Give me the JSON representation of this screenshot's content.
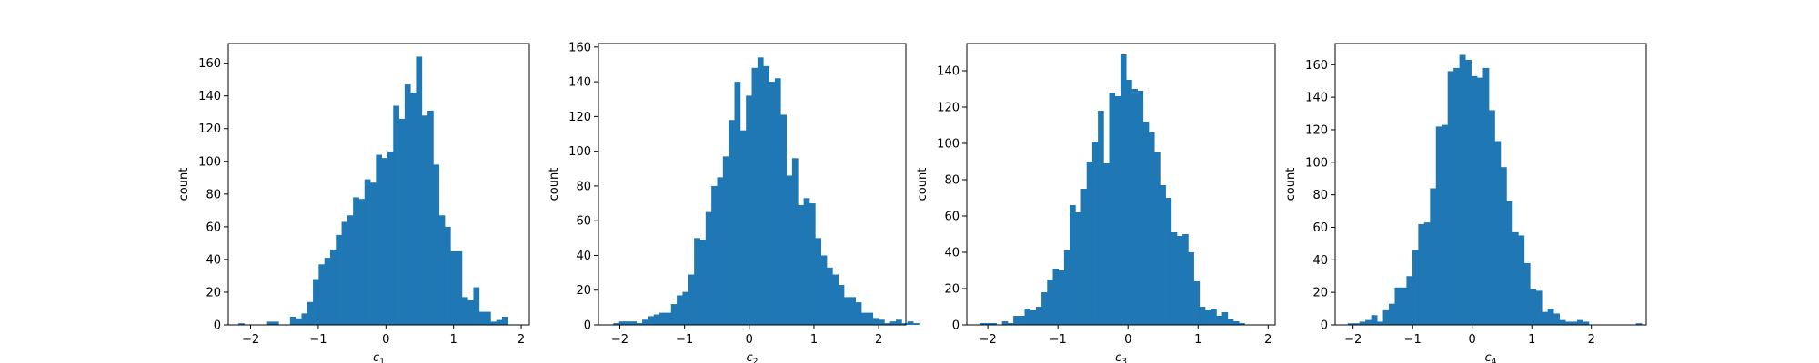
{
  "chart_data": [
    {
      "type": "histogram",
      "xlabel_main": "c",
      "xlabel_sub": "1",
      "ylabel": "count",
      "xlim": [
        -2.33,
        2.12
      ],
      "ylim": [
        0,
        172
      ],
      "xticks": [
        -2,
        -1,
        0,
        1,
        2
      ],
      "yticks": [
        0,
        20,
        40,
        60,
        80,
        100,
        120,
        140,
        160
      ],
      "bin_start": -2.18,
      "bin_width": 0.0847,
      "counts": [
        1,
        0,
        0,
        0,
        0,
        2,
        2,
        0,
        0,
        5,
        4,
        7,
        14,
        28,
        37,
        41,
        46,
        55,
        63,
        67,
        78,
        77,
        89,
        87,
        104,
        102,
        106,
        134,
        126,
        147,
        142,
        164,
        128,
        131,
        98,
        67,
        60,
        45,
        45,
        17,
        15,
        23,
        8,
        8,
        2,
        3,
        5,
        0
      ]
    },
    {
      "type": "histogram",
      "xlabel_main": "c",
      "xlabel_sub": "2",
      "ylabel": "count",
      "xlim": [
        -2.33,
        2.42
      ],
      "ylim": [
        0,
        162
      ],
      "xticks": [
        -2,
        -1,
        0,
        1,
        2
      ],
      "yticks": [
        0,
        20,
        40,
        60,
        80,
        100,
        120,
        140,
        160
      ],
      "bin_start": -2.1,
      "bin_width": 0.0891,
      "counts": [
        1,
        2,
        2,
        2,
        1,
        3,
        5,
        6,
        7,
        7,
        12,
        17,
        19,
        29,
        50,
        49,
        65,
        80,
        85,
        97,
        118,
        140,
        112,
        132,
        148,
        154,
        149,
        140,
        142,
        121,
        86,
        96,
        69,
        73,
        70,
        50,
        40,
        33,
        29,
        23,
        16,
        16,
        13,
        7,
        7,
        4,
        3,
        1,
        2,
        3,
        1,
        2,
        1
      ]
    },
    {
      "type": "histogram",
      "xlabel_main": "c",
      "xlabel_sub": "3",
      "ylabel": "count",
      "xlim": [
        -2.3,
        2.1
      ],
      "ylim": [
        0,
        155
      ],
      "xticks": [
        -2,
        -1,
        0,
        1,
        2
      ],
      "yticks": [
        0,
        20,
        40,
        60,
        80,
        100,
        120,
        140
      ],
      "bin_start": -2.12,
      "bin_width": 0.0805,
      "counts": [
        1,
        1,
        1,
        0,
        2,
        1,
        5,
        5,
        9,
        8,
        10,
        18,
        25,
        31,
        30,
        41,
        66,
        62,
        75,
        90,
        101,
        118,
        89,
        128,
        126,
        149,
        135,
        130,
        129,
        112,
        106,
        95,
        77,
        70,
        51,
        49,
        50,
        40,
        24,
        10,
        8,
        9,
        5,
        7,
        3,
        2,
        1,
        0
      ]
    },
    {
      "type": "histogram",
      "xlabel_main": "c",
      "xlabel_sub": "4",
      "ylabel": "count",
      "xlim": [
        -2.3,
        2.92
      ],
      "ylim": [
        0,
        173
      ],
      "xticks": [
        -2,
        -1,
        0,
        1,
        2
      ],
      "yticks": [
        0,
        20,
        40,
        60,
        80,
        100,
        120,
        140,
        160
      ],
      "bin_start": -2.09,
      "bin_width": 0.0987,
      "counts": [
        1,
        1,
        2,
        3,
        6,
        2,
        9,
        13,
        23,
        23,
        30,
        46,
        62,
        63,
        84,
        122,
        123,
        156,
        158,
        166,
        163,
        153,
        152,
        158,
        132,
        113,
        97,
        76,
        57,
        55,
        38,
        22,
        21,
        8,
        10,
        7,
        3,
        2,
        2,
        3,
        2,
        0,
        0,
        0,
        0,
        0,
        0,
        0,
        0,
        1
      ]
    }
  ]
}
